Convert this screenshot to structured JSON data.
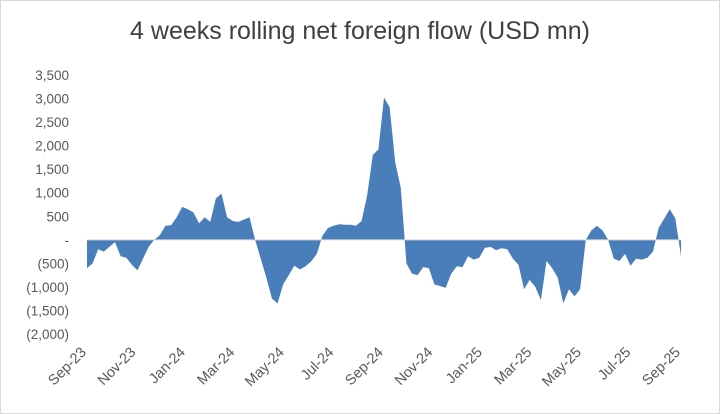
{
  "chart_data": {
    "type": "area",
    "title": "4 weeks rolling net foreign flow (USD mn)",
    "xlabel": "",
    "ylabel": "",
    "ylim": [
      -2000,
      3500
    ],
    "yticks": [
      3500,
      3000,
      2500,
      2000,
      1500,
      1000,
      500,
      0,
      -500,
      -1000,
      -1500,
      -2000
    ],
    "ytick_labels": [
      "3,500",
      "3,000",
      "2,500",
      "2,000",
      "1,500",
      "1,000",
      "500",
      "-",
      "(500)",
      "(1,000)",
      "(1,500)",
      "(2,000)"
    ],
    "x_tick_labels": [
      "Sep-23",
      "Nov-23",
      "Jan-24",
      "Mar-24",
      "May-24",
      "Jul-24",
      "Sep-24",
      "Nov-24",
      "Jan-25",
      "Mar-25",
      "May-25",
      "Jul-25",
      "Sep-25"
    ],
    "grid": false,
    "legend": "none",
    "fill_color": "#4a7ebb",
    "series": [
      {
        "values": [
          -600,
          -500,
          -200,
          -250,
          -150,
          -50,
          -350,
          -380,
          -530,
          -650,
          -400,
          -150,
          0,
          100,
          300,
          310,
          480,
          700,
          650,
          580,
          350,
          480,
          380,
          880,
          980,
          480,
          400,
          380,
          430,
          480,
          0,
          -400,
          -800,
          -1250,
          -1350,
          -950,
          -750,
          -550,
          -630,
          -560,
          -460,
          -300,
          80,
          250,
          300,
          330,
          320,
          320,
          300,
          400,
          950,
          1800,
          1920,
          3020,
          2820,
          1650,
          1100,
          -500,
          -720,
          -750,
          -580,
          -600,
          -950,
          -980,
          -1020,
          -720,
          -560,
          -580,
          -350,
          -420,
          -380,
          -170,
          -150,
          -220,
          -180,
          -200,
          -400,
          -530,
          -1050,
          -850,
          -1000,
          -1280,
          -450,
          -600,
          -800,
          -1350,
          -1050,
          -1200,
          -1050,
          0,
          200,
          300,
          200,
          0,
          -400,
          -450,
          -300,
          -550,
          -400,
          -420,
          -380,
          -250,
          250,
          450,
          650,
          450,
          -350
        ]
      }
    ]
  }
}
